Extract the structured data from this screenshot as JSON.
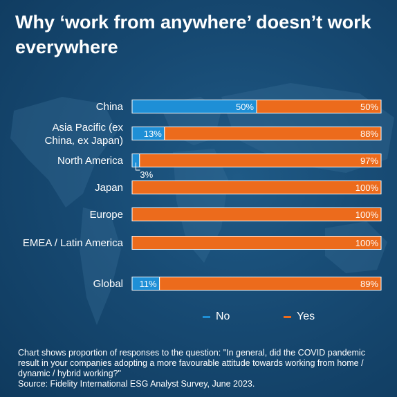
{
  "title": "Why ‘work from anywhere’ doesn’t work everywhere",
  "colors": {
    "no": "#1e8fd6",
    "yes": "#ec6b1c"
  },
  "chart_data": {
    "type": "bar",
    "orientation": "horizontal",
    "stacked": true,
    "categories": [
      "China",
      "Asia Pacific (ex China, ex Japan)",
      "North America",
      "Japan",
      "Europe",
      "EMEA / Latin America",
      "Global"
    ],
    "series": [
      {
        "name": "No",
        "values": [
          50,
          13,
          3,
          0,
          0,
          0,
          11
        ]
      },
      {
        "name": "Yes",
        "values": [
          50,
          88,
          97,
          100,
          100,
          100,
          89
        ]
      }
    ],
    "data_labels": {
      "No": [
        "50%",
        "13%",
        "3%",
        "",
        "",
        "",
        "11%"
      ],
      "Yes": [
        "50%",
        "88%",
        "97%",
        "100%",
        "100%",
        "100%",
        "89%"
      ]
    },
    "xlim": [
      0,
      100
    ],
    "legend_position": "bottom",
    "grid": false
  },
  "legend": {
    "no": "No",
    "yes": "Yes"
  },
  "footnote": {
    "question": "Chart shows proportion of responses to the question: \"In general, did the COVID pandemic result in your companies adopting a more favourable attitude towards working from home / dynamic / hybrid working?\"",
    "source": "Source: Fidelity International ESG Analyst Survey, June 2023."
  }
}
